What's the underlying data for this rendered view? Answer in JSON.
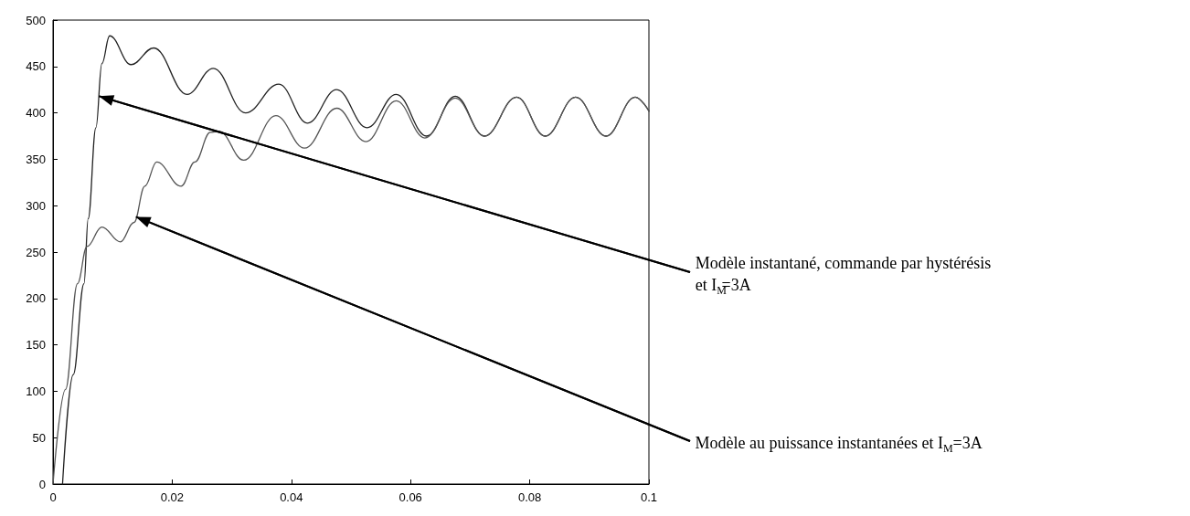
{
  "chart_data": {
    "type": "line",
    "marker": "none",
    "line_style": "solid",
    "grid": false,
    "xlim": [
      0,
      0.1
    ],
    "xticks": [
      0,
      0.02,
      0.04,
      0.06,
      0.08,
      0.1
    ],
    "ylim": [
      0,
      500
    ],
    "yticks": [
      0,
      50,
      100,
      150,
      200,
      250,
      300,
      350,
      400,
      450,
      500
    ],
    "series": [
      {
        "color": "#222222",
        "x": [
          0.0016,
          0.0034,
          0.0052,
          0.0059,
          0.0072,
          0.0082,
          0.0095,
          0.0131,
          0.0169,
          0.0225,
          0.0269,
          0.0323,
          0.0379,
          0.0427,
          0.0476,
          0.0527,
          0.0576,
          0.0627,
          0.0675,
          0.0724,
          0.0778,
          0.0826,
          0.0877,
          0.0928,
          0.0977,
          0.1
        ],
        "values": [
          0,
          118,
          216,
          286,
          384,
          453,
          483,
          452,
          470,
          420,
          448,
          400,
          431,
          389,
          425,
          384,
          420,
          375,
          418,
          375,
          417,
          375,
          417,
          375,
          417,
          402
        ]
      },
      {
        "color": "#555555",
        "x": [
          0,
          0.0021,
          0.0041,
          0.0057,
          0.0082,
          0.0113,
          0.0136,
          0.0154,
          0.0174,
          0.0215,
          0.0238,
          0.0264,
          0.0279,
          0.032,
          0.0374,
          0.0422,
          0.0476,
          0.0525,
          0.0576,
          0.0624,
          0.0675,
          0.0724,
          0.0778,
          0.0826,
          0.0877,
          0.0928,
          0.0977,
          0.1
        ],
        "values": [
          0,
          102,
          216,
          256,
          277,
          261,
          282,
          321,
          347,
          321,
          347,
          379,
          380,
          349,
          397,
          362,
          405,
          369,
          413,
          373,
          416,
          375,
          417,
          375,
          417,
          375,
          417,
          402
        ]
      }
    ],
    "annotations": [
      {
        "text": "Modèle instantané, commande par hystérésis et I$_{M}$=3A",
        "x": 0.0077,
        "y": 418
      },
      {
        "text": "Modèle au puissance instantanées et I$_{M}$=3A",
        "x": 0.0139,
        "y": 288
      }
    ]
  }
}
